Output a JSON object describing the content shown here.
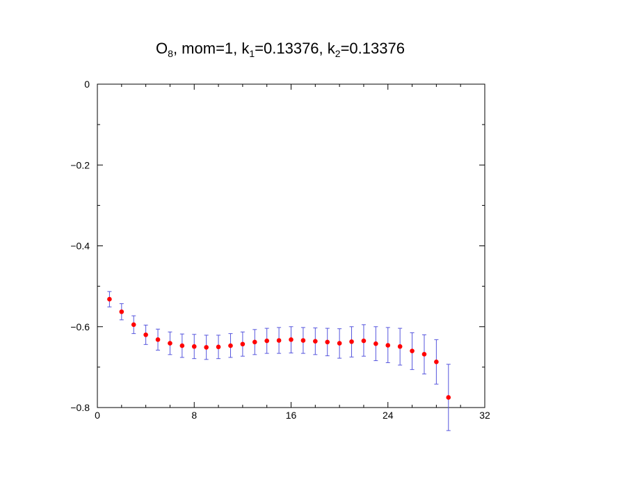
{
  "chart_data": {
    "type": "scatter",
    "title": {
      "parts": [
        {
          "text": "O",
          "sub": false
        },
        {
          "text": "8",
          "sub": true
        },
        {
          "text": ", mom=1, k",
          "sub": false
        },
        {
          "text": "1",
          "sub": true
        },
        {
          "text": "=0.13376, k",
          "sub": false
        },
        {
          "text": "2",
          "sub": true
        },
        {
          "text": "=0.13376",
          "sub": false
        }
      ]
    },
    "xlabel": "",
    "ylabel": "",
    "xlim": [
      0,
      32
    ],
    "ylim": [
      -0.8,
      0
    ],
    "xticks": [
      0,
      8,
      16,
      24,
      32
    ],
    "xtick_labels": [
      "0",
      "8",
      "16",
      "24",
      "32"
    ],
    "yticks": [
      0,
      -0.2,
      -0.4,
      -0.6,
      -0.8
    ],
    "ytick_labels": [
      "0",
      "−0.2",
      "−0.4",
      "−0.6",
      "−0.8"
    ],
    "x_minor_step": 2,
    "y_minor_step": 0.1,
    "grid": false,
    "marker_color": "#ff0000",
    "errorbar_color": "#5555dd",
    "series": [
      {
        "x": [
          1,
          2,
          3,
          4,
          5,
          6,
          7,
          8,
          9,
          10,
          11,
          12,
          13,
          14,
          15,
          16,
          17,
          18,
          19,
          20,
          21,
          22,
          23,
          24,
          25,
          26,
          27,
          28,
          29
        ],
        "y": [
          -0.532,
          -0.563,
          -0.595,
          -0.62,
          -0.632,
          -0.641,
          -0.647,
          -0.649,
          -0.651,
          -0.65,
          -0.647,
          -0.643,
          -0.638,
          -0.635,
          -0.634,
          -0.632,
          -0.634,
          -0.636,
          -0.638,
          -0.641,
          -0.637,
          -0.635,
          -0.642,
          -0.646,
          -0.649,
          -0.66,
          -0.668,
          -0.687,
          -0.775
        ],
        "yerr_low": [
          0.019,
          0.02,
          0.022,
          0.024,
          0.026,
          0.028,
          0.029,
          0.03,
          0.03,
          0.029,
          0.029,
          0.03,
          0.031,
          0.031,
          0.032,
          0.033,
          0.032,
          0.033,
          0.034,
          0.037,
          0.038,
          0.038,
          0.042,
          0.043,
          0.046,
          0.046,
          0.049,
          0.055,
          0.082
        ],
        "yerr_high": [
          0.019,
          0.02,
          0.022,
          0.024,
          0.026,
          0.028,
          0.029,
          0.03,
          0.03,
          0.029,
          0.03,
          0.03,
          0.031,
          0.031,
          0.032,
          0.032,
          0.032,
          0.033,
          0.034,
          0.036,
          0.037,
          0.04,
          0.042,
          0.044,
          0.045,
          0.045,
          0.048,
          0.055,
          0.082
        ]
      }
    ]
  }
}
